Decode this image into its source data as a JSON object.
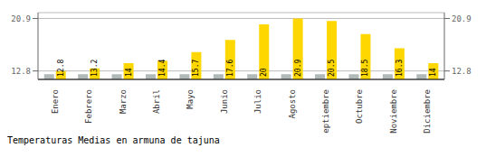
{
  "chart_data": {
    "type": "bar",
    "title": "Temperaturas Medias en armuna de tajuna",
    "categories": [
      "Enero",
      "Febrero",
      "Marzo",
      "Abril",
      "Mayo",
      "Junio",
      "Julio",
      "Agosto",
      "Septiembre",
      "Octubre",
      "Noviembre",
      "Diciembre"
    ],
    "series": [
      {
        "color": "#B0B8B8",
        "values": [
          12.3,
          12.3,
          12.3,
          12.3,
          12.3,
          12.3,
          12.3,
          12.3,
          12.3,
          12.3,
          12.3,
          12.3
        ]
      },
      {
        "color": "#FFD700",
        "values": [
          12.8,
          13.2,
          14.0,
          14.4,
          15.7,
          17.6,
          20.0,
          20.9,
          20.5,
          18.5,
          16.3,
          14.0
        ],
        "data_labels": true
      }
    ],
    "ylim": [
      11.5,
      21.8
    ],
    "yticks": [
      12.8,
      20.9
    ],
    "y2lim": [
      11.5,
      21.8
    ],
    "y2ticks": [
      12.8,
      20.9
    ],
    "grid": true
  }
}
